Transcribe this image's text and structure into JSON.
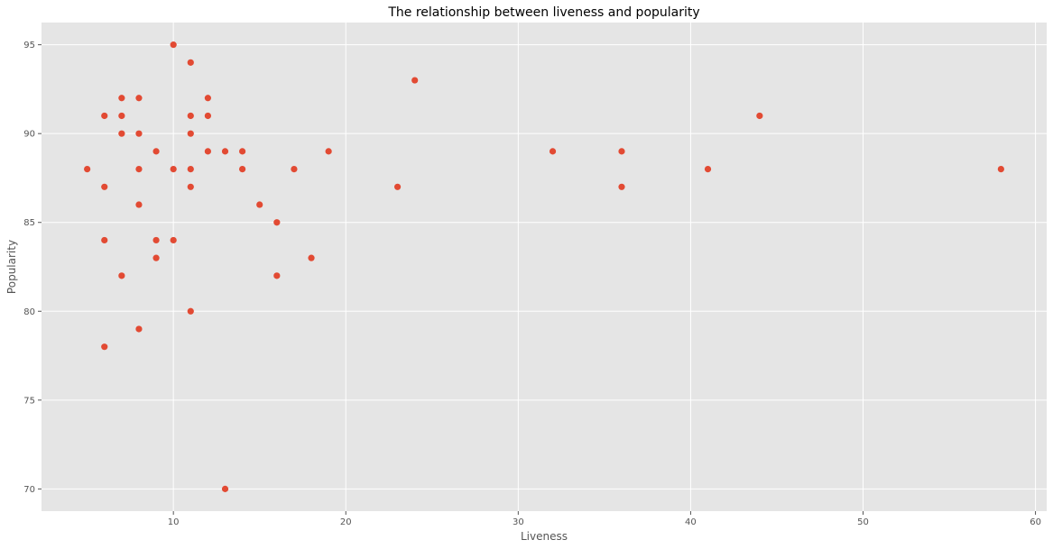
{
  "chart_data": {
    "type": "scatter",
    "title": "The relationship between liveness and popularity",
    "xlabel": "Liveness",
    "ylabel": "Popularity",
    "xlim": [
      2.35,
      60.65
    ],
    "ylim": [
      68.75,
      96.25
    ],
    "xticks": [
      10,
      20,
      30,
      40,
      50,
      60
    ],
    "yticks": [
      70,
      75,
      80,
      85,
      90,
      95
    ],
    "grid": true,
    "background_color": "#e5e5e5",
    "marker_color": "#e24a33",
    "points": [
      {
        "x": 5,
        "y": 88
      },
      {
        "x": 6,
        "y": 91
      },
      {
        "x": 6,
        "y": 87
      },
      {
        "x": 6,
        "y": 84
      },
      {
        "x": 6,
        "y": 78
      },
      {
        "x": 7,
        "y": 92
      },
      {
        "x": 7,
        "y": 91
      },
      {
        "x": 7,
        "y": 90
      },
      {
        "x": 7,
        "y": 82
      },
      {
        "x": 8,
        "y": 92
      },
      {
        "x": 8,
        "y": 90
      },
      {
        "x": 8,
        "y": 88
      },
      {
        "x": 8,
        "y": 86
      },
      {
        "x": 8,
        "y": 79
      },
      {
        "x": 9,
        "y": 89
      },
      {
        "x": 9,
        "y": 84
      },
      {
        "x": 9,
        "y": 83
      },
      {
        "x": 10,
        "y": 95
      },
      {
        "x": 10,
        "y": 88
      },
      {
        "x": 10,
        "y": 84
      },
      {
        "x": 11,
        "y": 94
      },
      {
        "x": 11,
        "y": 91
      },
      {
        "x": 11,
        "y": 90
      },
      {
        "x": 11,
        "y": 88
      },
      {
        "x": 11,
        "y": 87
      },
      {
        "x": 11,
        "y": 80
      },
      {
        "x": 12,
        "y": 92
      },
      {
        "x": 12,
        "y": 91
      },
      {
        "x": 12,
        "y": 89
      },
      {
        "x": 13,
        "y": 89
      },
      {
        "x": 13,
        "y": 70
      },
      {
        "x": 14,
        "y": 89
      },
      {
        "x": 14,
        "y": 88
      },
      {
        "x": 15,
        "y": 86
      },
      {
        "x": 16,
        "y": 85
      },
      {
        "x": 16,
        "y": 82
      },
      {
        "x": 17,
        "y": 88
      },
      {
        "x": 18,
        "y": 83
      },
      {
        "x": 19,
        "y": 89
      },
      {
        "x": 23,
        "y": 87
      },
      {
        "x": 24,
        "y": 93
      },
      {
        "x": 32,
        "y": 89
      },
      {
        "x": 36,
        "y": 89
      },
      {
        "x": 36,
        "y": 87
      },
      {
        "x": 41,
        "y": 88
      },
      {
        "x": 44,
        "y": 91
      },
      {
        "x": 58,
        "y": 88
      }
    ]
  }
}
